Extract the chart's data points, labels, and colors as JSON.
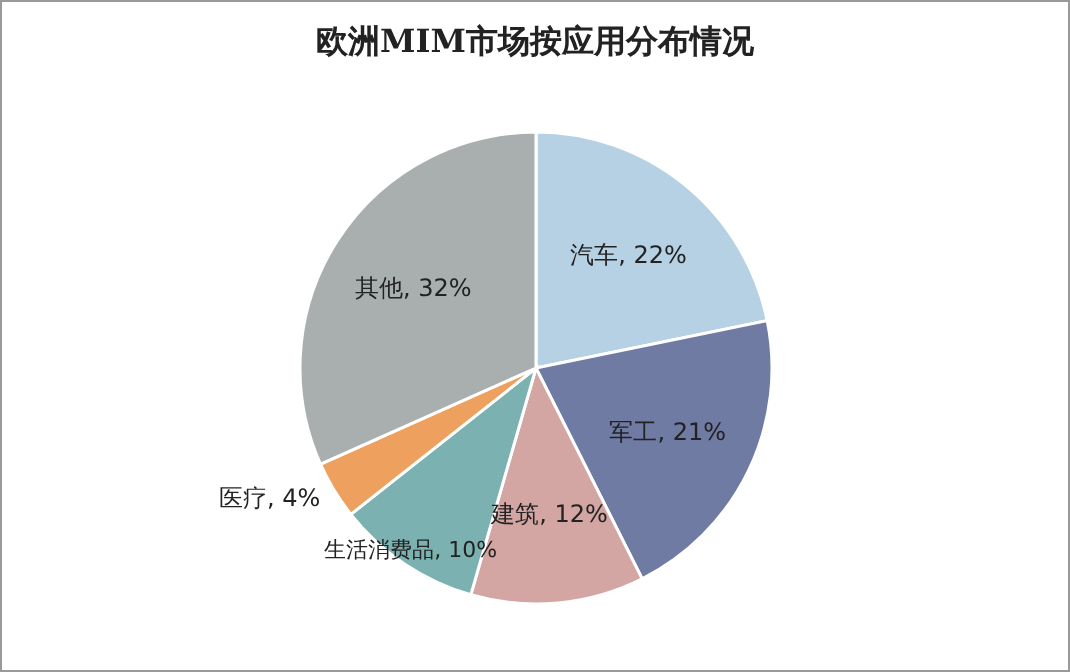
{
  "chart_data": {
    "type": "pie",
    "title": "欧洲MIM市场按应用分布情况",
    "categories": [
      "汽车",
      "军工",
      "建筑",
      "生活消费品",
      "医疗",
      "其他"
    ],
    "values": [
      22,
      21,
      12,
      10,
      4,
      32
    ],
    "value_labels": [
      "22%",
      "21%",
      "12%",
      "10%",
      "4%",
      "32%"
    ],
    "colors": [
      "#b7d1e4",
      "#6f7ba3",
      "#d3a6a4",
      "#7bb1b0",
      "#eea05e",
      "#a9afae"
    ],
    "legend": false
  }
}
